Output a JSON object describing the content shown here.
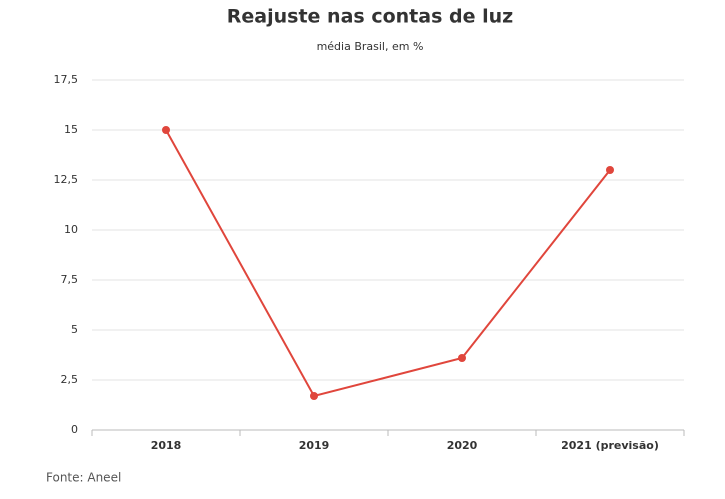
{
  "chart_data": {
    "type": "line",
    "title": "Reajuste nas contas de luz",
    "subtitle": "média Brasil, em %",
    "categories": [
      "2018",
      "2019",
      "2020",
      "2021 (previsão)"
    ],
    "series": [
      {
        "name": "Reajuste",
        "color": "#e0463c",
        "values": [
          15,
          1.7,
          3.6,
          13
        ]
      }
    ],
    "ylim": [
      0,
      17.5
    ],
    "yticks": [
      0,
      {
        "value": 2.5,
        "label": "2,5"
      },
      5,
      {
        "value": 7.5,
        "label": "7,5"
      },
      10,
      {
        "value": 12.5,
        "label": "12,5"
      },
      15,
      {
        "value": 17.5,
        "label": "17,5"
      }
    ],
    "grid": true,
    "source": "Fonte: Aneel"
  }
}
